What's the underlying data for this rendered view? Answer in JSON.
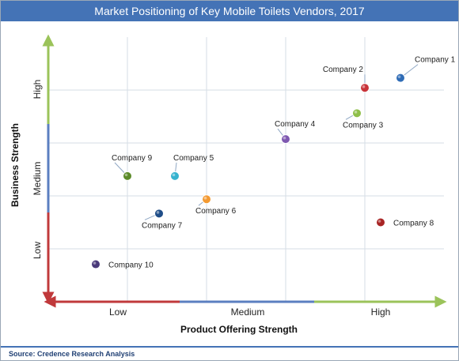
{
  "chart_data": {
    "type": "scatter",
    "title": "Market Positioning of Key Mobile Toilets Vendors, 2017",
    "xlabel": "Product Offering Strength",
    "ylabel": "Business Strength",
    "x_ticks": [
      "Low",
      "Medium",
      "High"
    ],
    "y_ticks": [
      "Low",
      "Medium",
      "High"
    ],
    "xlim": [
      0,
      5
    ],
    "ylim": [
      0,
      4.8
    ],
    "grid": true,
    "points": [
      {
        "label": "Company 1",
        "x": 4.45,
        "y": 4.06,
        "color": "#2f6cb6"
      },
      {
        "label": "Company 2",
        "x": 4.0,
        "y": 3.88,
        "color": "#c8343a"
      },
      {
        "label": "Company 3",
        "x": 3.9,
        "y": 3.42,
        "color": "#8fbf4a"
      },
      {
        "label": "Company 4",
        "x": 3.0,
        "y": 2.95,
        "color": "#7e58b0"
      },
      {
        "label": "Company 5",
        "x": 1.6,
        "y": 2.28,
        "color": "#36b3cf"
      },
      {
        "label": "Company 6",
        "x": 2.0,
        "y": 1.86,
        "color": "#f39a33"
      },
      {
        "label": "Company 7",
        "x": 1.4,
        "y": 1.6,
        "color": "#1f4e88"
      },
      {
        "label": "Company 8",
        "x": 4.2,
        "y": 1.44,
        "color": "#a82424"
      },
      {
        "label": "Company 9",
        "x": 1.0,
        "y": 2.28,
        "color": "#5c8b2a"
      },
      {
        "label": "Company 10",
        "x": 0.6,
        "y": 0.68,
        "color": "#4a3a7a"
      }
    ]
  },
  "footer": {
    "source": "Source: Credence Research Analysis"
  }
}
